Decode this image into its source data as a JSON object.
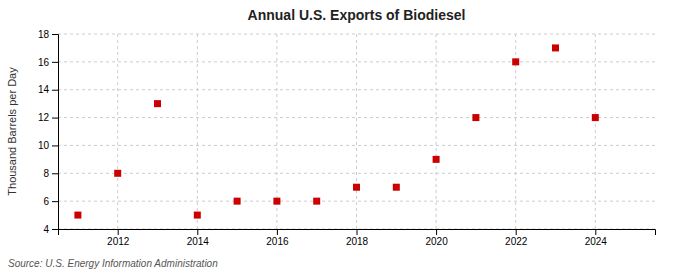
{
  "chart_data": {
    "type": "scatter",
    "title": "Annual U.S. Exports of Biodiesel",
    "y_label": "Thousand Barrels per Day",
    "annotations": [
      "Source: U.S. Energy Information Administration"
    ],
    "x": [
      2011,
      2012,
      2013,
      2014,
      2015,
      2016,
      2017,
      2018,
      2019,
      2020,
      2021,
      2022,
      2023,
      2024
    ],
    "values": [
      5.0,
      8.0,
      13.0,
      5.0,
      6.0,
      6.0,
      6.0,
      7.0,
      7.0,
      9.0,
      12.0,
      16.0,
      17.0,
      12.0
    ],
    "color": "#cc0000",
    "marker": "square",
    "xlim": [
      2010.5,
      2025.5
    ],
    "xticks": [
      2012,
      2014,
      2016,
      2018,
      2020,
      2022,
      2024
    ],
    "ylim": [
      4,
      18
    ],
    "yticks": [
      4,
      6,
      8,
      10,
      12,
      14,
      16,
      18
    ],
    "grid": true
  }
}
